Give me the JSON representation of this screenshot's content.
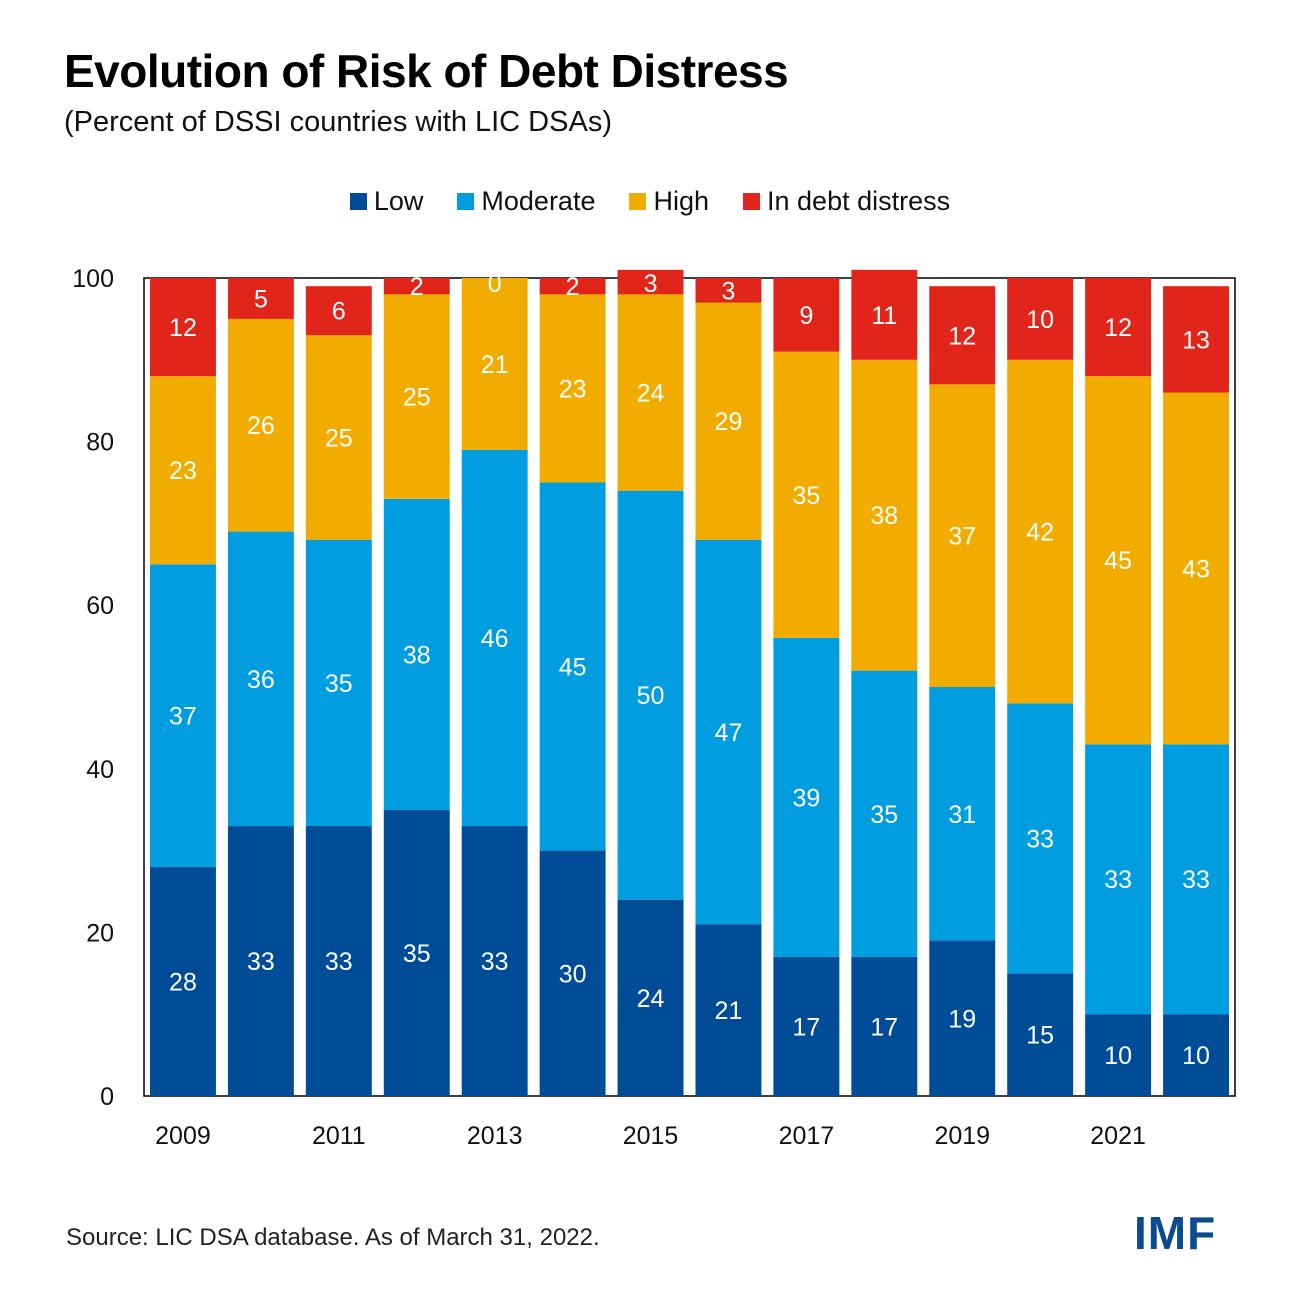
{
  "header": {
    "title": "Evolution of Risk of Debt Distress",
    "subtitle": "(Percent of DSSI countries with LIC DSAs)"
  },
  "colors": {
    "low": "#004c97",
    "moderate": "#009ee0",
    "high": "#f2ac00",
    "distress": "#e1251b"
  },
  "chart_data": {
    "type": "bar",
    "stacked": true,
    "x": [
      2009,
      2010,
      2011,
      2012,
      2013,
      2014,
      2015,
      2016,
      2017,
      2018,
      2019,
      2020,
      2021,
      2022
    ],
    "tick_labels": [
      "2009",
      "2011",
      "2013",
      "2015",
      "2017",
      "2019",
      "2021"
    ],
    "ylim": [
      0,
      100
    ],
    "yticks": [
      0,
      20,
      40,
      60,
      80,
      100
    ],
    "legend_position": "top-center",
    "series": [
      {
        "name": "Low",
        "color_key": "low",
        "values": [
          28,
          33,
          33,
          35,
          33,
          30,
          24,
          21,
          17,
          17,
          19,
          15,
          10,
          10
        ]
      },
      {
        "name": "Moderate",
        "color_key": "moderate",
        "values": [
          37,
          36,
          35,
          38,
          46,
          45,
          50,
          47,
          39,
          35,
          31,
          33,
          33,
          33
        ]
      },
      {
        "name": "High",
        "color_key": "high",
        "values": [
          23,
          26,
          25,
          25,
          21,
          23,
          24,
          29,
          35,
          38,
          37,
          42,
          45,
          43
        ]
      },
      {
        "name": "In debt distress",
        "color_key": "distress",
        "values": [
          12,
          5,
          6,
          2,
          0,
          2,
          3,
          3,
          9,
          11,
          12,
          10,
          12,
          13
        ]
      }
    ]
  },
  "footer": {
    "source": "Source: LIC DSA database. As of March 31, 2022.",
    "logo": "IMF"
  }
}
